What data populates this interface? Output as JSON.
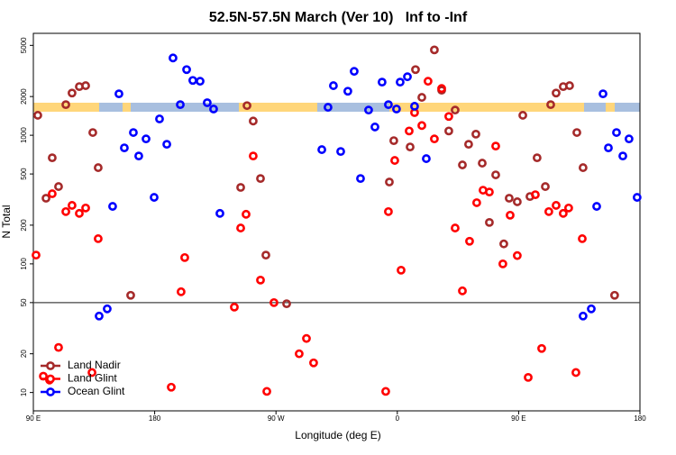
{
  "chart_data": {
    "type": "scatter",
    "title": "52.5N-57.5N March (Ver 10)   Inf to -Inf",
    "x_label": "Longitude (deg E)",
    "y_label": "N Total",
    "xlim": [
      90,
      540
    ],
    "xticks": [
      {
        "value": 90,
        "label": "90 E"
      },
      {
        "value": 180,
        "label": "180"
      },
      {
        "value": 270,
        "label": "90 W"
      },
      {
        "value": 360,
        "label": "0"
      },
      {
        "value": 450,
        "label": "90 E"
      },
      {
        "value": 540,
        "label": "180"
      }
    ],
    "ylim": [
      7.2,
      6200
    ],
    "yscale": "log",
    "yticks": [
      10,
      20,
      50,
      100,
      200,
      500,
      1000,
      2000,
      5000
    ],
    "hline": 50,
    "legend": "lower left",
    "series": [
      {
        "name": "Land Nadir",
        "color": "#a52a2a",
        "x": [
          93.3,
          99.4,
          104,
          108.7,
          114.1,
          118.7,
          124.1,
          128.8,
          134.1,
          138.1,
          162.2,
          243.8,
          248.5,
          253.1,
          258.5,
          262.5,
          277.9,
          354.1,
          357.4,
          369.5,
          373.5,
          378.2,
          387.5,
          392.9,
          398.2,
          402.9,
          408.3,
          412.9,
          418.3,
          423,
          428.3,
          433,
          439,
          443,
          449,
          453.1,
          458.4,
          463.7,
          469.8,
          473.8,
          477.8,
          483.1,
          487.8,
          493.2,
          497.8,
          521.2
        ],
        "values": [
          1430,
          324,
          668,
          399,
          1730,
          2130,
          2390,
          2430,
          1050,
          560,
          57,
          393,
          1700,
          1290,
          461,
          117,
          49,
          433,
          908,
          811,
          3240,
          1970,
          4610,
          2240,
          1080,
          1570,
          588,
          851,
          1020,
          607,
          210,
          492,
          143,
          324,
          304,
          1430,
          334,
          668,
          399,
          1730,
          2130,
          2390,
          2430,
          1050,
          560,
          57
        ]
      },
      {
        "name": "Land Glint",
        "color": "#ff0000",
        "x": [
          92,
          97.4,
          102,
          108.7,
          104,
          114.1,
          118.7,
          124.1,
          128.8,
          133.5,
          138.1,
          199.6,
          202.3,
          192.3,
          239.1,
          243.8,
          247.8,
          253.1,
          258.5,
          263.2,
          268.5,
          287.2,
          292.6,
          297.9,
          351.4,
          353.4,
          358.1,
          362.8,
          368.8,
          372.8,
          378.2,
          382.8,
          387.5,
          392.9,
          398.2,
          402.9,
          408.3,
          413.6,
          418.9,
          423.6,
          428.3,
          433,
          438.3,
          443.7,
          449,
          457.1,
          462.4,
          467.1,
          472.4,
          477.8,
          483.1,
          487.1,
          492.5,
          497.2
        ],
        "values": [
          117,
          13.4,
          12.5,
          22.4,
          351,
          255,
          285,
          247,
          272,
          14.3,
          157,
          60.7,
          112,
          11,
          46.1,
          190,
          243,
          690,
          74.8,
          10.2,
          50,
          20,
          26.3,
          17,
          10.2,
          255,
          637,
          89.3,
          1080,
          1500,
          1190,
          2630,
          937,
          2310,
          1400,
          190,
          61.7,
          150,
          299,
          374,
          362,
          824,
          100,
          239,
          116,
          13.1,
          345,
          22,
          255,
          285,
          247,
          272,
          14.3,
          157
        ]
      },
      {
        "name": "Ocean Glint",
        "color": "#0000ff",
        "x": [
          138.8,
          144.8,
          148.8,
          153.5,
          157.5,
          164.2,
          168.2,
          173.6,
          179.6,
          183.6,
          189,
          193.6,
          199,
          203.7,
          208.3,
          213.7,
          219,
          223.7,
          228.4,
          304,
          308.6,
          312.6,
          318,
          323.3,
          328,
          332.7,
          338.7,
          343.4,
          348.7,
          353.4,
          359.4,
          362.1,
          367.5,
          372.8,
          381.5,
          497.8,
          503.9,
          507.9,
          512.6,
          516.6,
          522.6,
          527.3,
          531.9,
          537.9
        ],
        "values": [
          39.3,
          44.7,
          280,
          2100,
          798,
          1050,
          690,
          937,
          329,
          1340,
          851,
          3990,
          1730,
          3240,
          2670,
          2630,
          1790,
          1600,
          247,
          773,
          1650,
          2430,
          748,
          2200,
          3140,
          461,
          1570,
          1160,
          2590,
          1730,
          1600,
          2590,
          2850,
          1680,
          658,
          39.3,
          44.7,
          280,
          2100,
          798,
          1050,
          690,
          937,
          329
        ]
      }
    ]
  }
}
